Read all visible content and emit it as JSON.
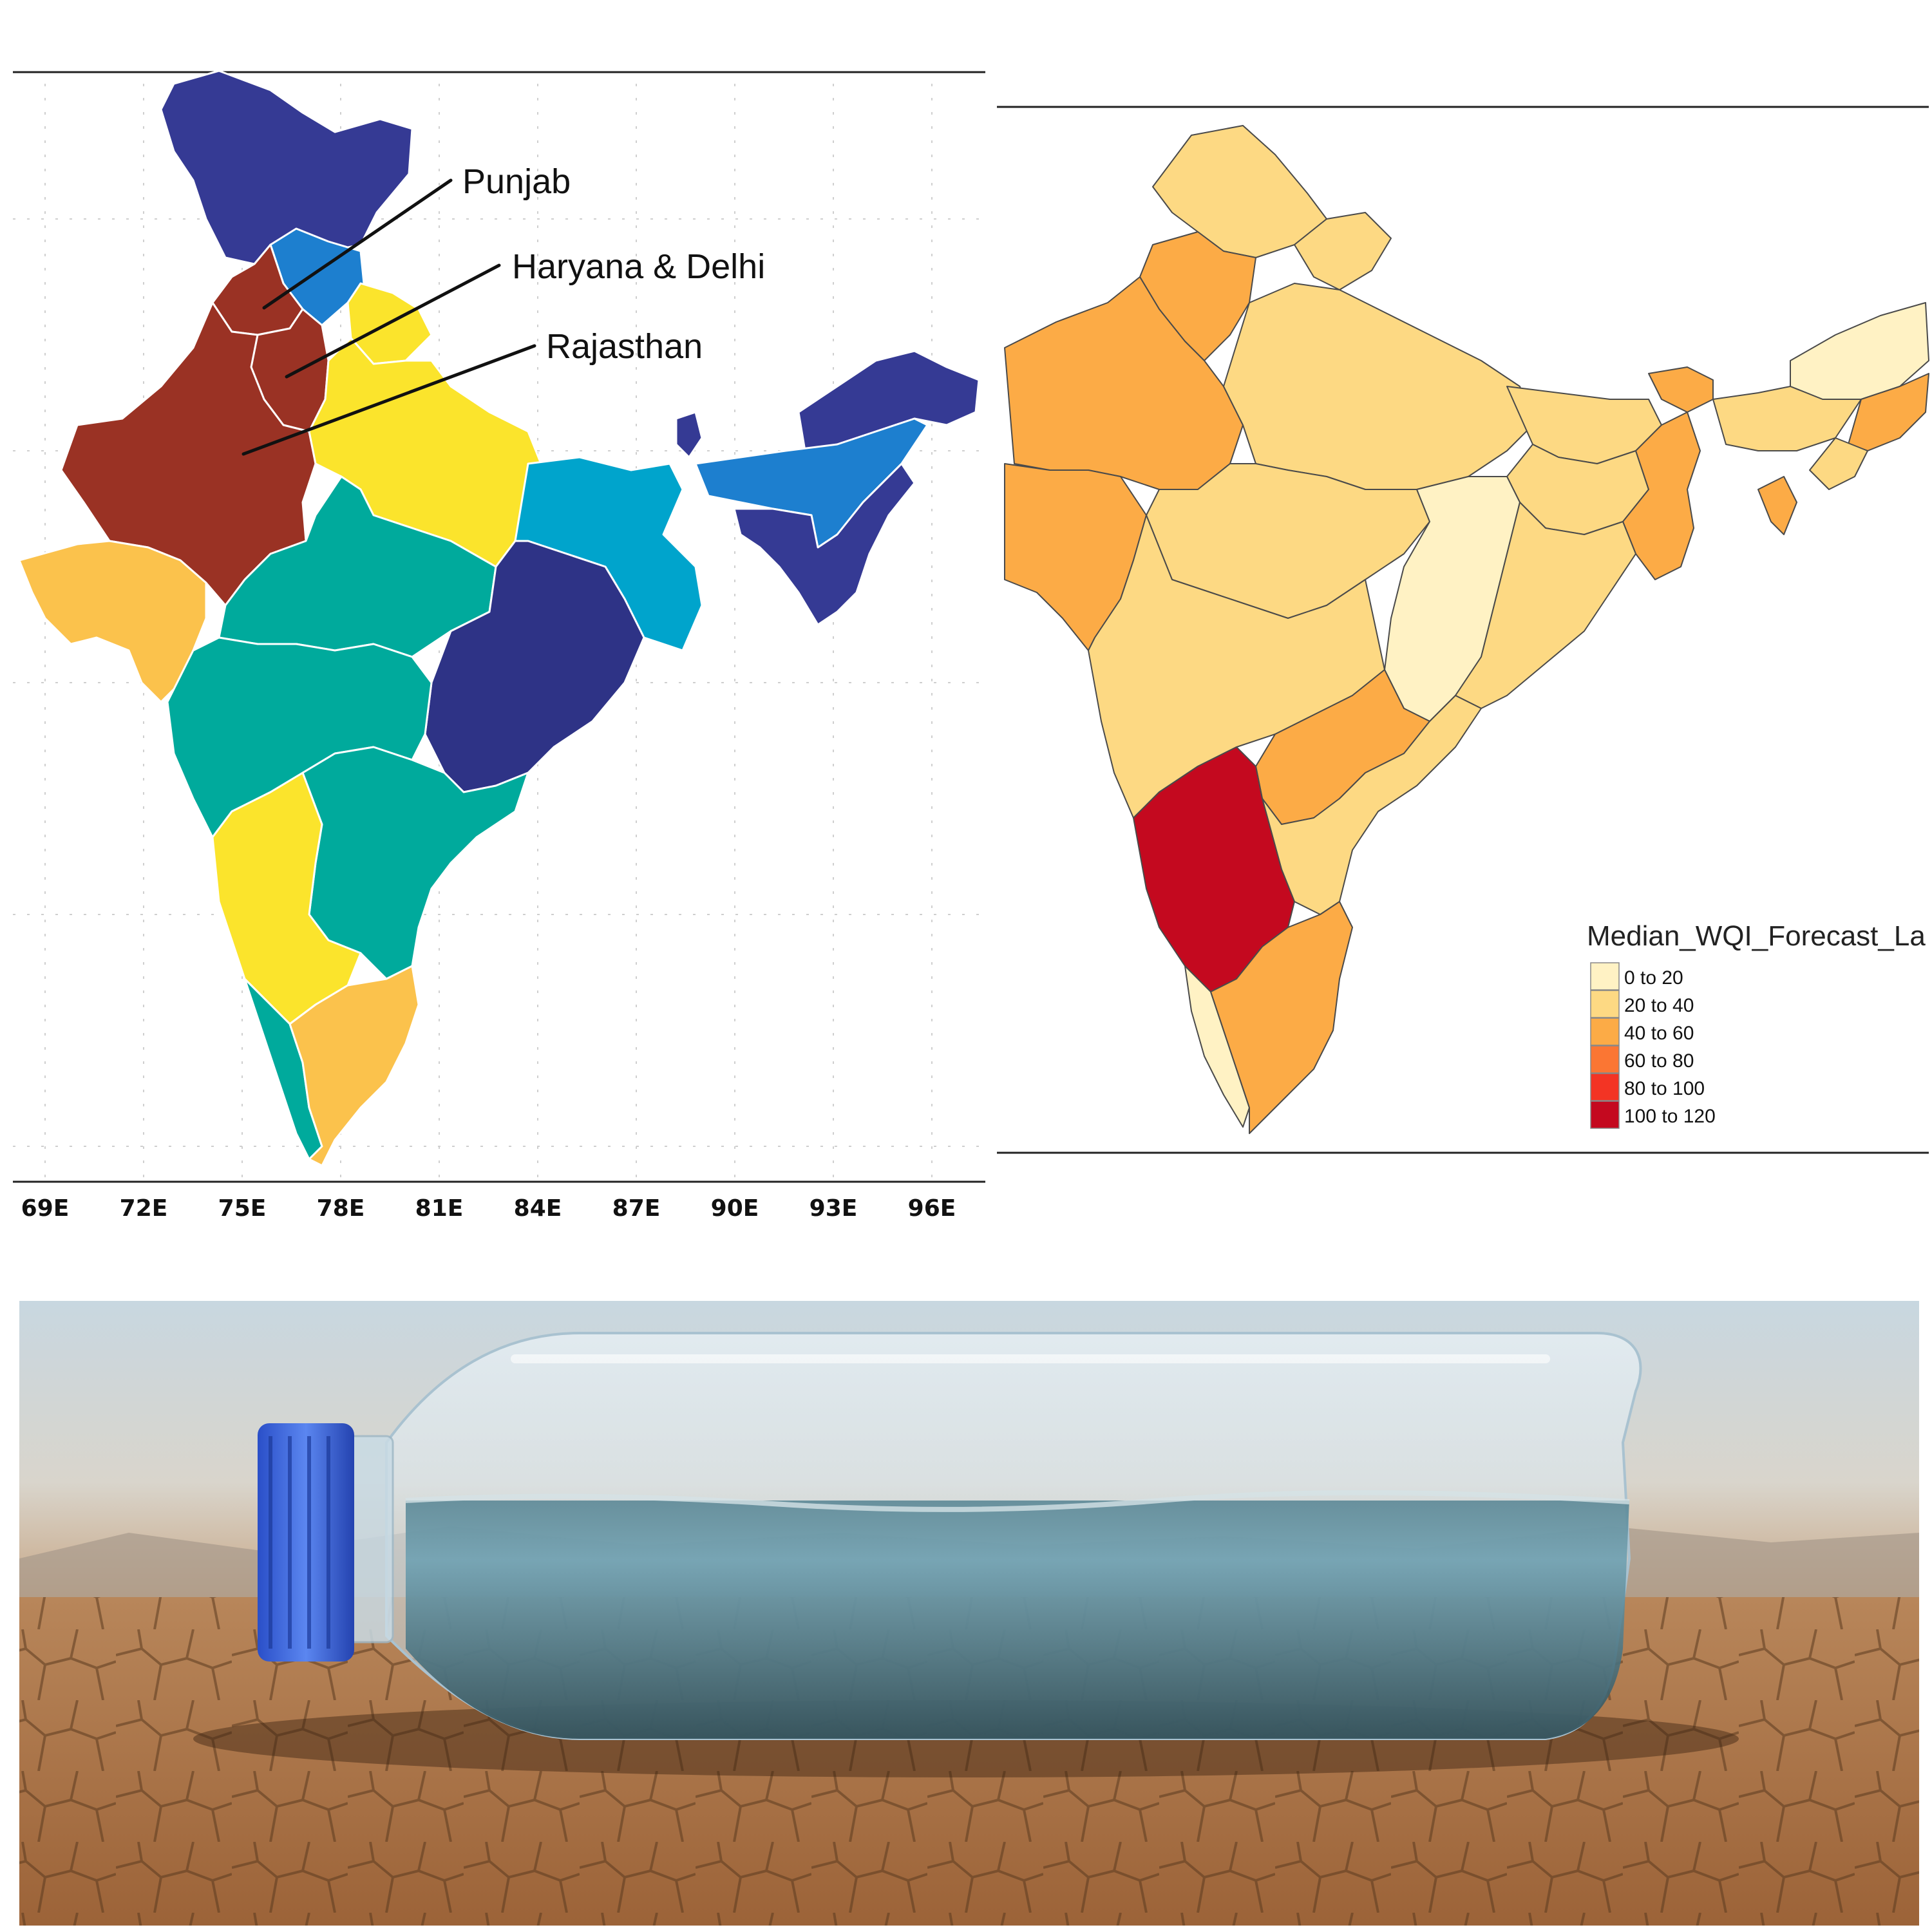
{
  "left_map": {
    "callouts": [
      {
        "label": "Punjab"
      },
      {
        "label": "Haryana & Delhi"
      },
      {
        "label": "Rajasthan"
      }
    ],
    "lon_ticks": [
      "69E",
      "72E",
      "75E",
      "78E",
      "81E",
      "84E",
      "87E",
      "90E",
      "93E",
      "96E"
    ],
    "colors": {
      "north": "#353a94",
      "himachal": "#1d7fcf",
      "punjab_raj": "#9a3224",
      "up": "#fbe42c",
      "central": "#00aa9c",
      "east": "#2e3386",
      "bengal": "#00a4cc",
      "gujarat": "#fbc24c",
      "karnataka": "#fbe42c",
      "tamil": "#fbc24c"
    }
  },
  "right_map": {
    "legend": {
      "title": "Median_WQI_Forecast_La",
      "items": [
        {
          "label": "0 to 20",
          "color": "#fff2c4"
        },
        {
          "label": "20 to 40",
          "color": "#fdd983"
        },
        {
          "label": "40 to 60",
          "color": "#fcab46"
        },
        {
          "label": "60 to 80",
          "color": "#fb7633"
        },
        {
          "label": "80 to 100",
          "color": "#f33424"
        },
        {
          "label": "100 to 120",
          "color": "#c4091f"
        }
      ]
    }
  },
  "photo": {
    "subject": "plastic-water-bottle-on-cracked-earth"
  }
}
